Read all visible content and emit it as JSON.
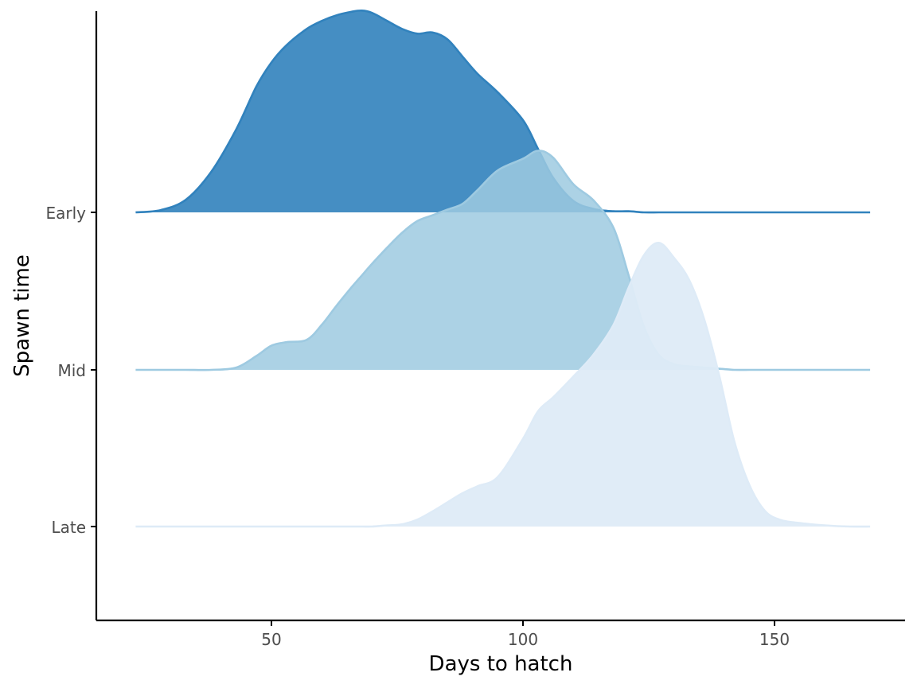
{
  "chart_data": {
    "type": "ridgeline",
    "title": "",
    "xlabel": "Days to hatch",
    "ylabel": "Spawn time",
    "xlim": [
      16,
      175
    ],
    "x_ticks": [
      50,
      100,
      150
    ],
    "x_tick_labels": [
      "50",
      "100",
      "150"
    ],
    "categories": [
      "Early",
      "Mid",
      "Late"
    ],
    "grid": false,
    "legend": "none",
    "x": [
      23,
      28,
      33,
      38,
      43,
      47,
      50,
      53,
      57,
      60,
      63,
      66,
      68,
      70,
      73,
      76,
      79,
      82,
      85,
      88,
      91,
      95,
      100,
      103,
      106,
      110,
      114,
      118,
      121,
      124,
      127,
      130,
      133,
      136,
      139,
      142,
      145,
      148,
      151,
      155,
      160,
      165,
      169
    ],
    "series": [
      {
        "name": "Early",
        "color": "#3182bd",
        "fill_opacity": 0.9,
        "line_opacity": 1,
        "values": [
          0.0,
          0.02,
          0.11,
          0.35,
          0.72,
          1.09,
          1.3,
          1.45,
          1.59,
          1.66,
          1.71,
          1.74,
          1.75,
          1.73,
          1.66,
          1.59,
          1.55,
          1.56,
          1.5,
          1.35,
          1.2,
          1.04,
          0.8,
          0.55,
          0.3,
          0.1,
          0.03,
          0.01,
          0.01,
          0.0,
          0.0,
          0.0,
          0.0,
          0.0,
          0.0,
          0.0,
          0.0,
          0.0,
          0.0,
          0.0,
          0.0,
          0.0,
          0.0
        ]
      },
      {
        "name": "Mid",
        "color": "#9ecae1",
        "fill_opacity": 0.85,
        "line_opacity": 1,
        "values": [
          0.0,
          0.0,
          0.0,
          0.0,
          0.02,
          0.12,
          0.21,
          0.24,
          0.26,
          0.39,
          0.56,
          0.72,
          0.82,
          0.92,
          1.06,
          1.19,
          1.29,
          1.34,
          1.39,
          1.44,
          1.56,
          1.73,
          1.83,
          1.9,
          1.84,
          1.61,
          1.47,
          1.23,
          0.82,
          0.38,
          0.13,
          0.05,
          0.03,
          0.02,
          0.01,
          0.0,
          0.0,
          0.0,
          0.0,
          0.0,
          0.0,
          0.0,
          0.0
        ]
      },
      {
        "name": "Late",
        "color": "#deebf7",
        "fill_opacity": 0.95,
        "line_opacity": 1,
        "values": [
          0.0,
          0.0,
          0.0,
          0.0,
          0.0,
          0.0,
          0.0,
          0.0,
          0.0,
          0.0,
          0.0,
          0.0,
          0.0,
          0.0,
          0.01,
          0.02,
          0.06,
          0.13,
          0.21,
          0.29,
          0.35,
          0.43,
          0.76,
          1.0,
          1.12,
          1.3,
          1.49,
          1.75,
          2.07,
          2.35,
          2.46,
          2.33,
          2.14,
          1.8,
          1.31,
          0.74,
          0.36,
          0.14,
          0.06,
          0.03,
          0.01,
          0.0,
          0.0
        ]
      }
    ]
  }
}
